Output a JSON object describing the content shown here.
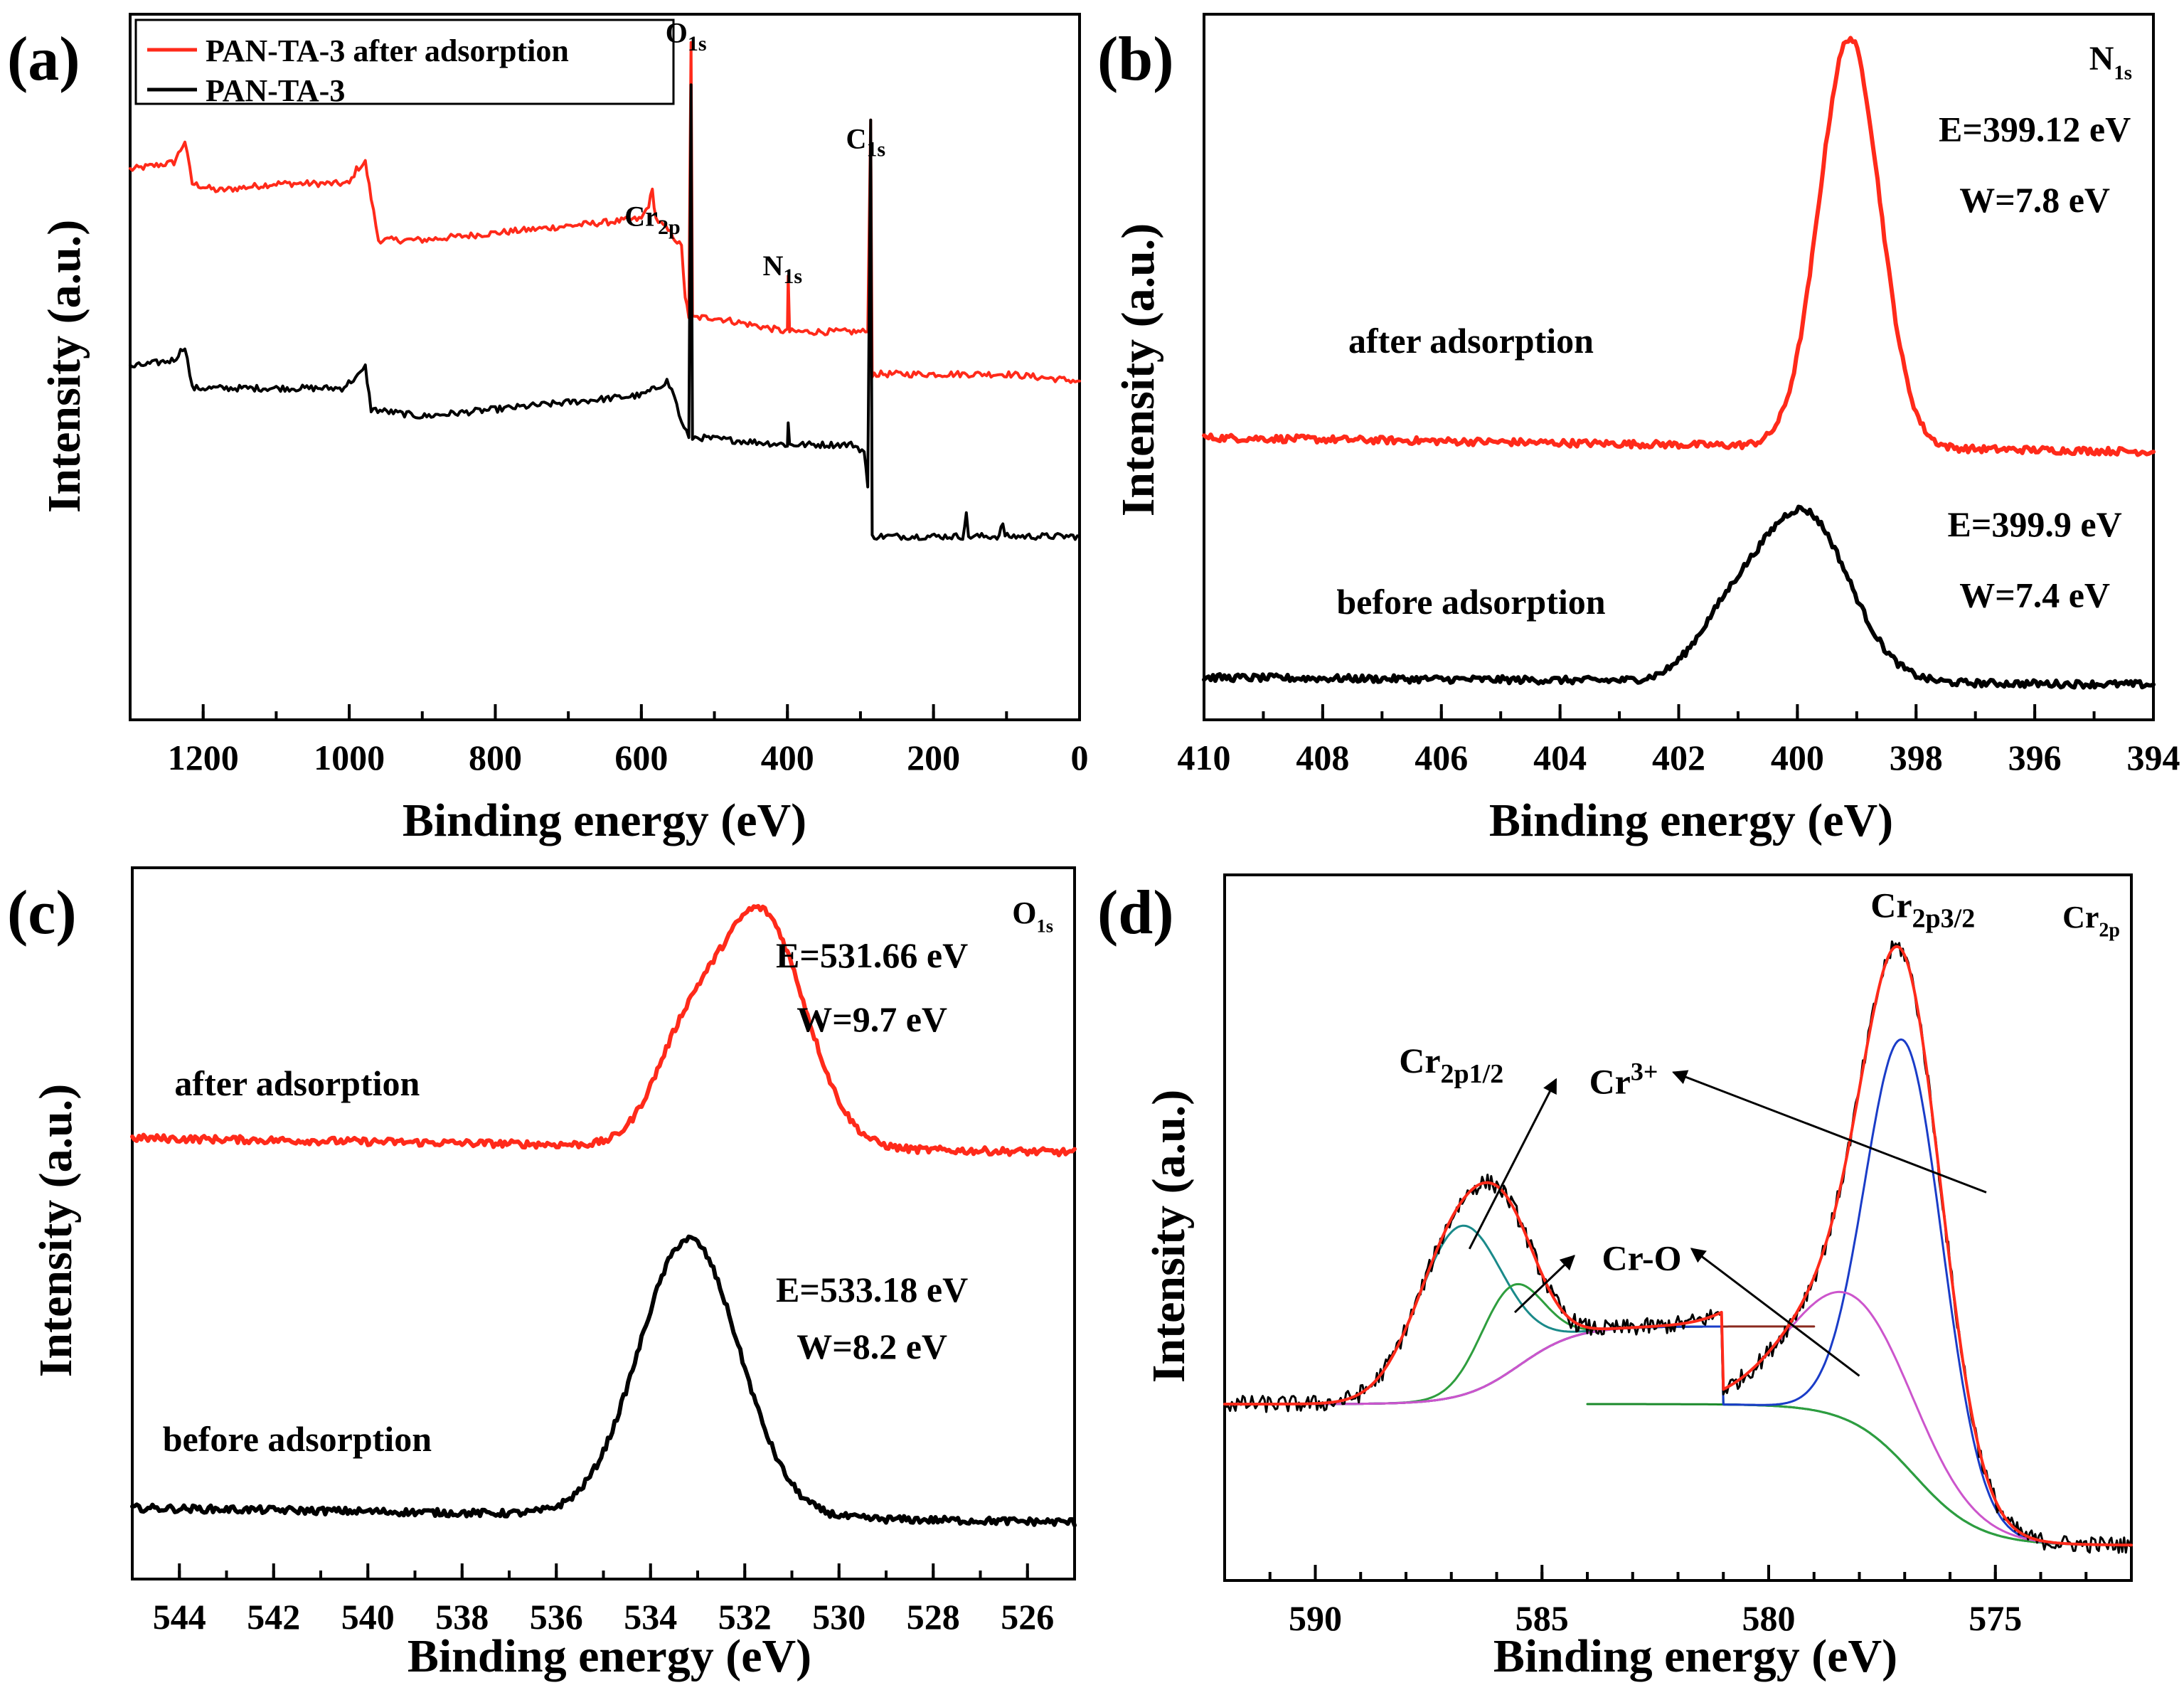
{
  "colors": {
    "after": "#ff2a1a",
    "before": "#000000",
    "comp_cr3": "#1a8a8a",
    "comp_cro": "#2e9e3e",
    "comp_blue": "#1a3cc8",
    "comp_pink": "#cc55cc",
    "baseline_brown": "#8b2a1e",
    "baseline_green": "#1a8a2a"
  },
  "chart_data": [
    {
      "id": "a",
      "panel_label": "(a)",
      "type": "line",
      "xlabel": "Binding energy (eV)",
      "ylabel": "Intensity (a.u.)",
      "xlim": [
        1300,
        0
      ],
      "ylim": [
        0,
        100
      ],
      "xticks": [
        1200,
        1000,
        800,
        600,
        400,
        200,
        0
      ],
      "legend": {
        "position": "top-left",
        "entries": [
          {
            "label": "PAN-TA-3 after adsorption",
            "color": "#ff2a1a"
          },
          {
            "label": "PAN-TA-3",
            "color": "#000000"
          }
        ]
      },
      "annotations": [
        {
          "base": "O",
          "sub": "1s",
          "x": 531,
          "y": 96
        },
        {
          "base": "C",
          "sub": "1s",
          "x": 285,
          "y": 81
        },
        {
          "base": "Cr",
          "sub": "2p",
          "x": 577,
          "y": 70
        },
        {
          "base": "N",
          "sub": "1s",
          "x": 399,
          "y": 63
        }
      ],
      "series": [
        {
          "name": "PAN-TA-3 after adsorption",
          "color": "#ff2a1a",
          "points": [
            [
              1300,
              78
            ],
            [
              1240,
              79
            ],
            [
              1225,
              82
            ],
            [
              1215,
              76
            ],
            [
              1180,
              75
            ],
            [
              1100,
              76
            ],
            [
              1000,
              76
            ],
            [
              990,
              78
            ],
            [
              978,
              79
            ],
            [
              970,
              74
            ],
            [
              960,
              68
            ],
            [
              900,
              68
            ],
            [
              800,
              69
            ],
            [
              700,
              70
            ],
            [
              600,
              71
            ],
            [
              590,
              73
            ],
            [
              585,
              75
            ],
            [
              580,
              71
            ],
            [
              570,
              70
            ],
            [
              560,
              69
            ],
            [
              545,
              67
            ],
            [
              540,
              60
            ],
            [
              535,
              57
            ],
            [
              532,
              96
            ],
            [
              530,
              57
            ],
            [
              520,
              57
            ],
            [
              500,
              57
            ],
            [
              400,
              55
            ],
            [
              399,
              63
            ],
            [
              397,
              55
            ],
            [
              300,
              55
            ],
            [
              290,
              55
            ],
            [
              286,
              85
            ],
            [
              284,
              49
            ],
            [
              200,
              49
            ],
            [
              100,
              49
            ],
            [
              0,
              48
            ]
          ]
        },
        {
          "name": "PAN-TA-3",
          "color": "#000000",
          "points": [
            [
              1300,
              50
            ],
            [
              1240,
              51
            ],
            [
              1225,
              53
            ],
            [
              1215,
              47
            ],
            [
              1180,
              47
            ],
            [
              1100,
              47
            ],
            [
              1010,
              47
            ],
            [
              985,
              49
            ],
            [
              978,
              50
            ],
            [
              970,
              44
            ],
            [
              900,
              43
            ],
            [
              800,
              44
            ],
            [
              700,
              45
            ],
            [
              600,
              46
            ],
            [
              580,
              47
            ],
            [
              565,
              48
            ],
            [
              555,
              46
            ],
            [
              545,
              42
            ],
            [
              535,
              40
            ],
            [
              532,
              90
            ],
            [
              530,
              40
            ],
            [
              520,
              40
            ],
            [
              400,
              39
            ],
            [
              399,
              42
            ],
            [
              397,
              39
            ],
            [
              310,
              39
            ],
            [
              295,
              38
            ],
            [
              290,
              33
            ],
            [
              286,
              85
            ],
            [
              284,
              26
            ],
            [
              250,
              26
            ],
            [
              160,
              26
            ],
            [
              155,
              29
            ],
            [
              152,
              26
            ],
            [
              110,
              26
            ],
            [
              105,
              28
            ],
            [
              102,
              26
            ],
            [
              0,
              26
            ]
          ]
        }
      ]
    },
    {
      "id": "b",
      "panel_label": "(b)",
      "type": "line",
      "title": {
        "base": "N",
        "sub": "1s"
      },
      "xlabel": "Binding energy (eV)",
      "ylabel": "Intensity (a.u.)",
      "xlim": [
        410,
        394
      ],
      "ylim": [
        0,
        100
      ],
      "xticks": [
        410,
        408,
        406,
        404,
        402,
        400,
        398,
        396,
        394
      ],
      "labels": [
        {
          "text": "after adsorption",
          "x": 405.5,
          "y": 52
        },
        {
          "text": "before adsorption",
          "x": 405.5,
          "y": 15
        },
        {
          "text": "E=399.12 eV",
          "x": 396,
          "y": 82
        },
        {
          "text": "W=7.8 eV",
          "x": 396,
          "y": 72
        },
        {
          "text": "E=399.9 eV",
          "x": 396,
          "y": 26
        },
        {
          "text": "W=7.4 eV",
          "x": 396,
          "y": 16
        }
      ],
      "series": [
        {
          "name": "after adsorption",
          "color": "#ff2a1a",
          "peak_center": 399.12,
          "fwhm": 1.2,
          "peak_height": 58,
          "baseline": [
            40,
            38
          ]
        },
        {
          "name": "before adsorption",
          "color": "#000000",
          "peak_center": 399.9,
          "fwhm": 1.8,
          "peak_height": 24,
          "baseline": [
            6,
            5
          ],
          "shoulder": {
            "center": 401.2,
            "fwhm": 1.3,
            "height": 7
          }
        }
      ]
    },
    {
      "id": "c",
      "panel_label": "(c)",
      "type": "line",
      "title": {
        "base": "O",
        "sub": "1s"
      },
      "xlabel": "Binding energy (eV)",
      "ylabel": "Intensity (a.u.)",
      "xlim": [
        545,
        525
      ],
      "ylim": [
        0,
        100
      ],
      "xticks": [
        544,
        542,
        540,
        538,
        536,
        534,
        532,
        530,
        528,
        526
      ],
      "labels": [
        {
          "text": "after adsorption",
          "x": 541.5,
          "y": 68
        },
        {
          "text": "before adsorption",
          "x": 541.5,
          "y": 18
        },
        {
          "text": "E=531.66 eV",
          "x": 529.3,
          "y": 86
        },
        {
          "text": "W=9.7 eV",
          "x": 529.3,
          "y": 77
        },
        {
          "text": "E=533.18 eV",
          "x": 529.3,
          "y": 39
        },
        {
          "text": "W=8.2 eV",
          "x": 529.3,
          "y": 31
        }
      ],
      "series": [
        {
          "name": "after adsorption",
          "color": "#ff2a1a",
          "peak_center": 531.66,
          "fwhm": 2.2,
          "peak_height": 33,
          "baseline": [
            62,
            60
          ],
          "shoulder": {
            "center": 533.3,
            "fwhm": 1.6,
            "height": 12
          }
        },
        {
          "name": "before adsorption",
          "color": "#000000",
          "peak_center": 533.18,
          "fwhm": 2.5,
          "peak_height": 39,
          "baseline": [
            10,
            8
          ]
        }
      ]
    },
    {
      "id": "d",
      "panel_label": "(d)",
      "type": "line",
      "title": {
        "base": "Cr",
        "sub": "2p"
      },
      "xlabel": "Binding energy (eV)",
      "ylabel": "Intensity (a.u.)",
      "xlim": [
        592,
        572
      ],
      "ylim": [
        0,
        100
      ],
      "xticks": [
        590,
        585,
        580,
        575
      ],
      "peak_labels": [
        {
          "base": "Cr",
          "sub": "2p1/2",
          "x": 587,
          "y": 72
        },
        {
          "base": "Cr",
          "sub": "2p3/2",
          "x": 576.6,
          "y": 94
        }
      ],
      "callouts": [
        {
          "base": "Cr",
          "sup": "3+",
          "x": 583.2,
          "y": 69,
          "arrows": [
            [
              586.6,
              47
            ],
            [
              575.2,
              55
            ]
          ]
        },
        {
          "base": "Cr-O",
          "x": 582.8,
          "y": 44,
          "arrows": [
            [
              585.6,
              38
            ],
            [
              578,
              29
            ]
          ]
        }
      ],
      "series": [
        {
          "name": "raw",
          "color": "#000000",
          "role": "raw"
        },
        {
          "name": "fit envelope",
          "color": "#ff2a1a",
          "role": "envelope"
        },
        {
          "name": "Cr3+ 2p1/2",
          "color": "#1a8a8a",
          "center": 586.8,
          "fwhm": 2.2,
          "height": 24
        },
        {
          "name": "Cr-O 2p1/2",
          "color": "#2e9e3e",
          "center": 585.7,
          "fwhm": 1.6,
          "height": 12
        },
        {
          "name": "Cr3+ 2p3/2",
          "color": "#1a3cc8",
          "center": 577.0,
          "fwhm": 2.0,
          "height": 60
        },
        {
          "name": "Cr-O 2p3/2",
          "color": "#cc55cc",
          "center": 578.2,
          "fwhm": 3.2,
          "height": 18
        },
        {
          "name": "background (upper)",
          "color": "#8b2a1e",
          "role": "background_upper"
        },
        {
          "name": "background (lower)",
          "color": "#1a8a2a",
          "role": "background_lower"
        }
      ]
    }
  ]
}
